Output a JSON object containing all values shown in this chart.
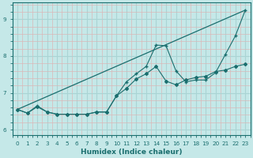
{
  "xlabel": "Humidex (Indice chaleur)",
  "ylabel": "",
  "bg_color": "#c5e8e8",
  "grid_color_major": "#aad4d4",
  "grid_color_minor": "#dab8b8",
  "line_color": "#1a6e6e",
  "xlim": [
    -0.5,
    23.5
  ],
  "ylim": [
    5.85,
    9.45
  ],
  "xticks": [
    0,
    1,
    2,
    3,
    4,
    5,
    6,
    7,
    8,
    9,
    10,
    11,
    12,
    13,
    14,
    15,
    16,
    17,
    18,
    19,
    20,
    21,
    22,
    23
  ],
  "yticks": [
    6,
    7,
    8,
    9
  ],
  "line1_x": [
    0,
    1,
    2,
    3,
    4,
    5,
    6,
    7,
    8,
    9,
    10,
    11,
    12,
    13,
    14,
    15,
    16,
    17,
    18,
    19,
    20,
    21,
    22,
    23
  ],
  "line1_y": [
    6.55,
    6.45,
    6.62,
    6.48,
    6.42,
    6.42,
    6.42,
    6.42,
    6.48,
    6.48,
    6.92,
    7.12,
    7.38,
    7.52,
    7.72,
    7.32,
    7.22,
    7.35,
    7.42,
    7.45,
    7.58,
    7.62,
    7.72,
    7.78
  ],
  "line2_x": [
    0,
    1,
    2,
    3,
    4,
    5,
    6,
    7,
    8,
    9,
    10,
    11,
    12,
    13,
    14,
    15,
    16,
    17,
    18,
    19,
    20,
    21,
    22,
    23
  ],
  "line2_y": [
    6.55,
    6.45,
    6.65,
    6.48,
    6.42,
    6.42,
    6.42,
    6.42,
    6.48,
    6.48,
    6.92,
    7.3,
    7.52,
    7.72,
    8.3,
    8.28,
    7.6,
    7.3,
    7.35,
    7.35,
    7.55,
    8.05,
    8.55,
    9.25
  ],
  "line3_x": [
    0,
    23
  ],
  "line3_y": [
    6.55,
    9.25
  ]
}
